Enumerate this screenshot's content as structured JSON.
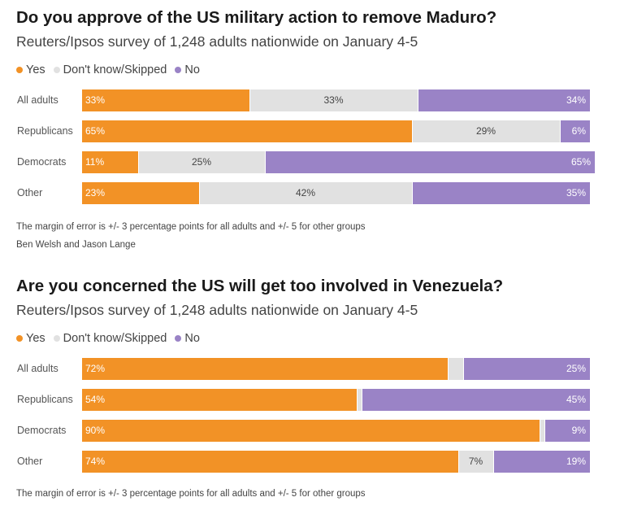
{
  "colors": {
    "yes": "#f29226",
    "dont_know": "#e1e1e1",
    "no": "#9a83c6"
  },
  "chart_data": [
    {
      "type": "bar",
      "stacked": true,
      "orientation": "horizontal",
      "title": "Do you approve of the US military action to remove Maduro?",
      "subtitle": "Reuters/Ipsos survey of 1,248 adults nationwide on January 4-5",
      "legend": [
        "Yes",
        "Don't know/Skipped",
        "No"
      ],
      "categories": [
        "All adults",
        "Republicans",
        "Democrats",
        "Other"
      ],
      "series": [
        {
          "name": "Yes",
          "values": [
            33,
            65,
            11,
            23
          ],
          "labels": [
            "33%",
            "65%",
            "11%",
            "23%"
          ]
        },
        {
          "name": "Don't know/Skipped",
          "values": [
            33,
            29,
            25,
            42
          ],
          "labels": [
            "33%",
            "29%",
            "25%",
            "42%"
          ]
        },
        {
          "name": "No",
          "values": [
            34,
            6,
            65,
            35
          ],
          "labels": [
            "34%",
            "6%",
            "65%",
            "35%"
          ]
        }
      ],
      "xlim": [
        0,
        100
      ],
      "notes": [
        "The margin of error is +/- 3 percentage points for all adults and +/- 5 for other groups",
        "Ben Welsh and Jason Lange"
      ]
    },
    {
      "type": "bar",
      "stacked": true,
      "orientation": "horizontal",
      "title": "Are you concerned the US will get too involved in Venezuela?",
      "subtitle": "Reuters/Ipsos survey of 1,248 adults nationwide on January 4-5",
      "legend": [
        "Yes",
        "Don't know/Skipped",
        "No"
      ],
      "categories": [
        "All adults",
        "Republicans",
        "Democrats",
        "Other"
      ],
      "series": [
        {
          "name": "Yes",
          "values": [
            72,
            54,
            90,
            74
          ],
          "labels": [
            "72%",
            "54%",
            "90%",
            "74%"
          ]
        },
        {
          "name": "Don't know/Skipped",
          "values": [
            3,
            1,
            1,
            7
          ],
          "labels": [
            "",
            "",
            "",
            "7%"
          ]
        },
        {
          "name": "No",
          "values": [
            25,
            45,
            9,
            19
          ],
          "labels": [
            "25%",
            "45%",
            "9%",
            "19%"
          ]
        }
      ],
      "xlim": [
        0,
        100
      ],
      "notes": [
        "The margin of error is +/- 3 percentage points for all adults and +/- 5 for other groups"
      ]
    }
  ]
}
